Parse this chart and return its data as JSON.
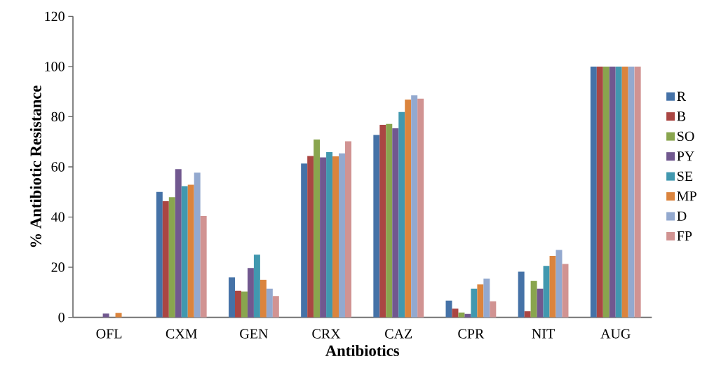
{
  "chart_data": {
    "type": "bar",
    "xlabel": "Antibiotics",
    "ylabel": "% Antibiotic Resistance",
    "categories": [
      "OFL",
      "CXM",
      "GEN",
      "CRX",
      "CAZ",
      "CPR",
      "NIT",
      "AUG"
    ],
    "ylim": [
      0,
      120
    ],
    "yticks": [
      0,
      20,
      40,
      60,
      80,
      100,
      120
    ],
    "grid": false,
    "legend": "right",
    "series": [
      {
        "name": "R",
        "color": "#4572a7",
        "values": [
          0,
          50,
          16,
          61.3,
          72.7,
          6.7,
          18.2,
          100
        ]
      },
      {
        "name": "B",
        "color": "#aa4643",
        "values": [
          0,
          46.3,
          10.6,
          64.3,
          76.8,
          3.5,
          2.4,
          100
        ]
      },
      {
        "name": "SO",
        "color": "#89a54e",
        "values": [
          0,
          47.9,
          10.3,
          70.9,
          77.1,
          1.9,
          14.5,
          100
        ]
      },
      {
        "name": "PY",
        "color": "#71588f",
        "values": [
          1.5,
          59.1,
          19.7,
          63.8,
          75.4,
          1.4,
          11.4,
          100
        ]
      },
      {
        "name": "SE",
        "color": "#4198af",
        "values": [
          0,
          52.3,
          25,
          65.9,
          81.9,
          11.4,
          20.5,
          100
        ]
      },
      {
        "name": "MP",
        "color": "#db843d",
        "values": [
          1.8,
          52.9,
          15,
          64.2,
          86.8,
          13.2,
          24.5,
          100
        ]
      },
      {
        "name": "D",
        "color": "#93a9cf",
        "values": [
          0,
          57.7,
          11.4,
          65.4,
          88.5,
          15.4,
          26.9,
          100
        ]
      },
      {
        "name": "FP",
        "color": "#d19392",
        "values": [
          0,
          40.4,
          8.5,
          70.2,
          87.2,
          6.4,
          21.3,
          100
        ]
      }
    ]
  }
}
